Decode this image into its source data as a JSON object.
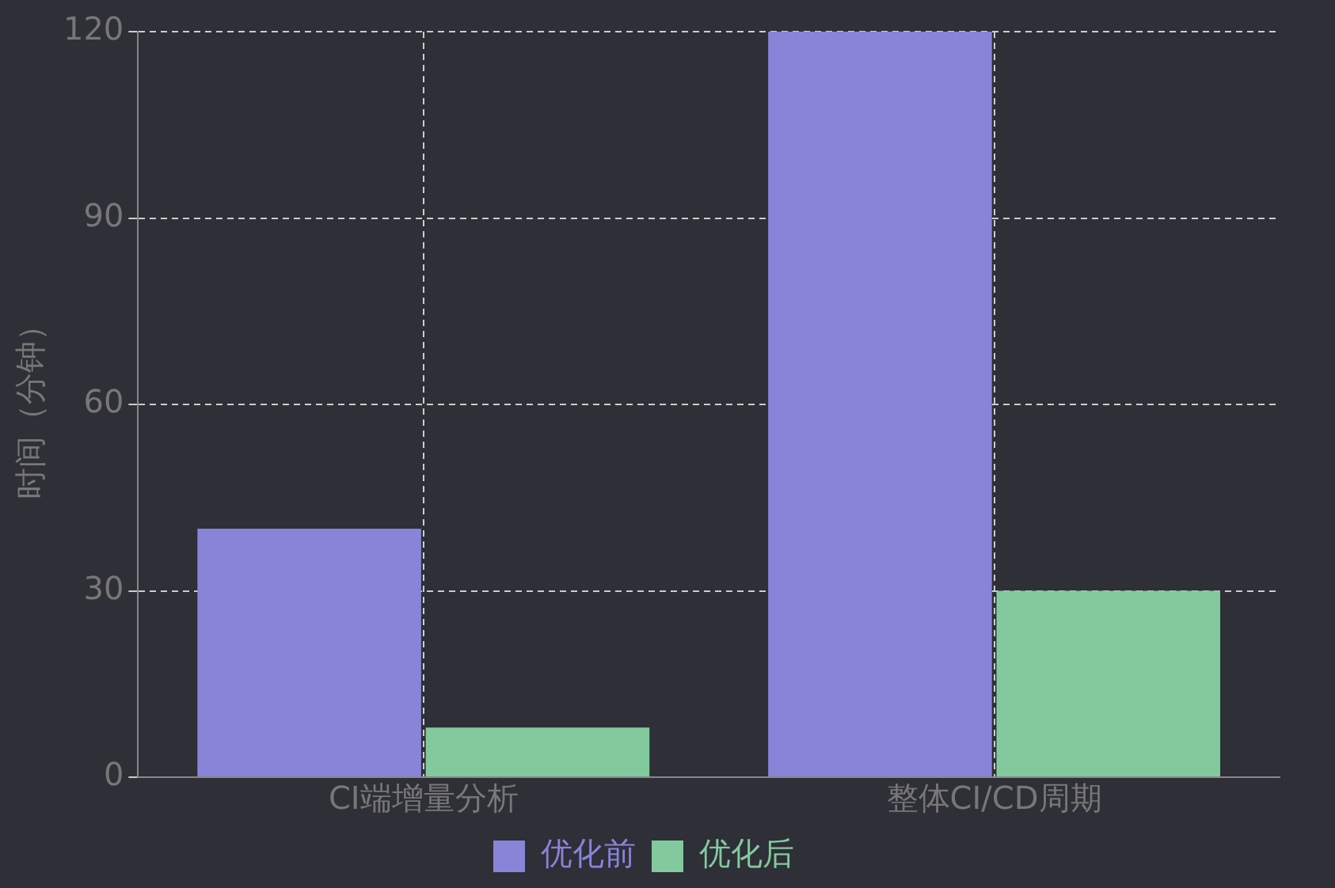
{
  "chart_data": {
    "type": "bar",
    "ylabel": "时间（分钟）",
    "categories": [
      "CI端增量分析",
      "整体CI/CD周期"
    ],
    "series": [
      {
        "name": "优化前",
        "color": "#8884d8",
        "values": [
          40,
          120
        ]
      },
      {
        "name": "优化后",
        "color": "#82ca9d",
        "values": [
          8,
          30
        ]
      }
    ],
    "ylim": [
      0,
      120
    ],
    "yticks": [
      0,
      30,
      60,
      90,
      120
    ],
    "grid": true,
    "legend": "bottom"
  }
}
